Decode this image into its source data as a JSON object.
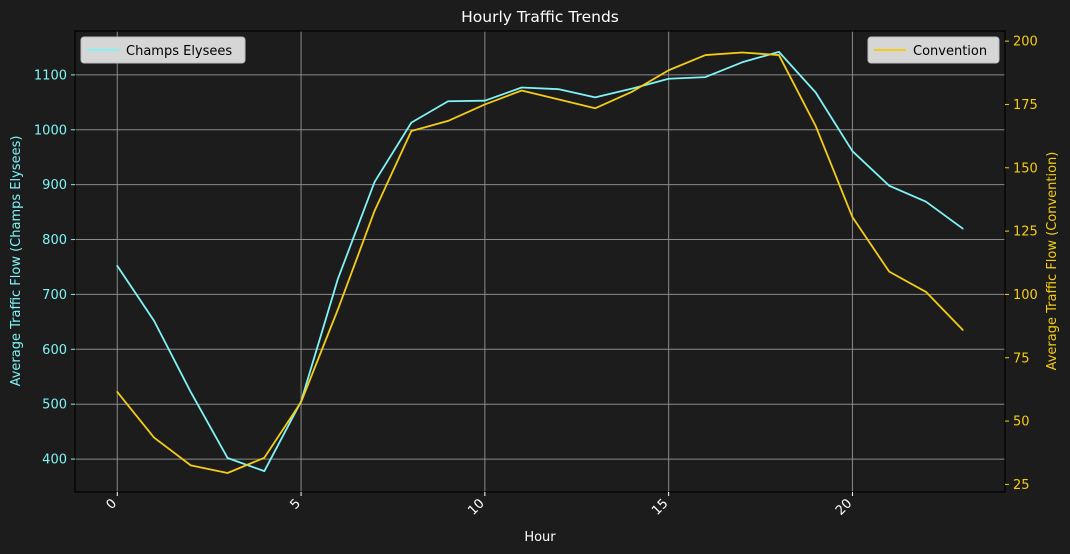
{
  "chart_data": {
    "type": "line",
    "title": "Hourly Traffic Trends",
    "xlabel": "Hour",
    "ylabel_left": "Average Traffic Flow (Champs Elysees)",
    "ylabel_right": "Average Traffic Flow (Convention)",
    "x": [
      0,
      1,
      2,
      3,
      4,
      5,
      6,
      7,
      8,
      9,
      10,
      11,
      12,
      13,
      14,
      15,
      16,
      17,
      18,
      19,
      20,
      21,
      22,
      23
    ],
    "xlim": [
      -1.15,
      24.15
    ],
    "x_ticks": [
      0,
      5,
      10,
      15,
      20
    ],
    "ylim_left": [
      340,
      1180
    ],
    "y_ticks_left": [
      400,
      500,
      600,
      700,
      800,
      900,
      1000,
      1100
    ],
    "ylim_right": [
      22,
      204
    ],
    "y_ticks_right": [
      25,
      50,
      75,
      100,
      125,
      150,
      175,
      200
    ],
    "grid": true,
    "series": [
      {
        "name": "Champs Elysees",
        "axis": "left",
        "color": "#7ff3f5",
        "legend_position": "top-left",
        "values": [
          752,
          652,
          522,
          402,
          378,
          505,
          728,
          905,
          1013,
          1052,
          1053,
          1077,
          1074,
          1059,
          1075,
          1093,
          1096,
          1123,
          1142,
          1068,
          961,
          898,
          869,
          820
        ]
      },
      {
        "name": "Convention",
        "axis": "right",
        "color": "#f5cc14",
        "legend_position": "top-right",
        "values": [
          61.5,
          43.5,
          32.5,
          29.5,
          35.5,
          57.5,
          94,
          133,
          164.5,
          168.5,
          175,
          180.5,
          177,
          173.5,
          180,
          188.5,
          194.5,
          195.5,
          194.5,
          166.5,
          130.5,
          109,
          101,
          86
        ]
      }
    ]
  }
}
